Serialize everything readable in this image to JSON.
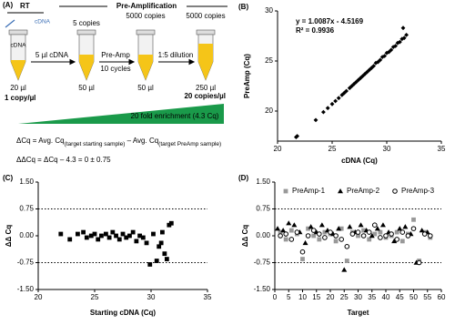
{
  "panel_a": {
    "label": "(A)",
    "rt": "RT",
    "preamp_header": "Pre-Amplification",
    "top_cdna": "cDNA",
    "tube_cdna": "cDNA",
    "copies": [
      "5 copies",
      "5000 copies",
      "5000 copies"
    ],
    "steps": [
      "5 µl cDNA",
      "Pre-Amp",
      "10 cycles",
      "1:5 dilution"
    ],
    "volumes": [
      "20 µl",
      "50 µl",
      "50 µl",
      "250 µl"
    ],
    "start_conc": "1 copy/µl",
    "end_conc": "20 copies/µl",
    "enrichment": "20 fold enrichment (4.3 Cq)",
    "eq1": {
      "lhs": "ΔCq = Avg. Cq",
      "sub1": "(target starting sample)",
      "mid": " – Avg. Cq",
      "sub2": "(target PreAmp sample)"
    },
    "eq2": "ΔΔCq = ΔCq – 4.3 = 0 ± 0.75"
  },
  "chart_data": [
    {
      "type": "scatter",
      "label": "(B)",
      "xlabel": "cDNA (Cq)",
      "ylabel": "PreAmp (Cq)",
      "xlim": [
        20,
        35
      ],
      "ylim": [
        17,
        30
      ],
      "xticks": [
        20,
        25,
        30,
        35
      ],
      "yticks": [
        20,
        25,
        30
      ],
      "annotations": [
        "y = 1.0087x - 4.5169",
        "R² = 0.9936"
      ],
      "series": [
        {
          "color": "#000000",
          "marker": "diamond",
          "x": [
            21.7,
            21.8,
            23.5,
            24.2,
            24.6,
            25.0,
            25.3,
            25.6,
            25.9,
            26.1,
            26.3,
            26.6,
            26.8,
            27.0,
            27.2,
            27.4,
            27.6,
            27.8,
            28.0,
            28.2,
            28.4,
            28.6,
            28.8,
            29.0,
            29.2,
            29.4,
            29.6,
            29.8,
            30.0,
            30.2,
            30.4,
            30.6,
            30.8,
            31.0,
            31.2,
            31.4,
            31.5,
            31.6,
            31.8
          ],
          "values": [
            17.4,
            17.5,
            19.1,
            19.9,
            20.3,
            20.7,
            21.0,
            21.3,
            21.6,
            21.8,
            22.0,
            22.3,
            22.5,
            22.7,
            22.9,
            23.1,
            23.3,
            23.5,
            23.7,
            23.9,
            24.1,
            24.3,
            24.5,
            24.8,
            24.9,
            25.1,
            25.4,
            25.5,
            25.8,
            25.9,
            26.1,
            26.4,
            26.5,
            26.8,
            26.9,
            27.2,
            28.3,
            27.3,
            27.6
          ]
        }
      ]
    },
    {
      "type": "scatter",
      "label": "(C)",
      "xlabel": "Starting cDNA (Cq)",
      "ylabel": "ΔΔ Cq",
      "xlim": [
        20,
        35
      ],
      "ylim": [
        -1.5,
        1.5
      ],
      "xticks": [
        20,
        25,
        30,
        35
      ],
      "yticks": [
        {
          "value": -1.5,
          "label": "-1.50"
        },
        {
          "value": -0.75,
          "label": "-0.75"
        },
        {
          "value": 0,
          "label": "0.00"
        },
        {
          "value": 0.75,
          "label": "0.75"
        },
        {
          "value": 1.5,
          "label": "1.50"
        }
      ],
      "reference_lines": [
        -0.75,
        0.75
      ],
      "series": [
        {
          "color": "#000000",
          "marker": "square",
          "x": [
            22.0,
            22.8,
            23.5,
            24.0,
            24.3,
            24.7,
            25.0,
            25.3,
            25.6,
            26.0,
            26.3,
            26.6,
            26.9,
            27.2,
            27.5,
            27.8,
            28.1,
            28.4,
            28.7,
            29.0,
            29.3,
            29.6,
            29.9,
            30.2,
            30.5,
            30.7,
            30.9,
            31.0,
            31.2,
            31.4,
            31.6,
            31.8
          ],
          "values": [
            0.05,
            -0.1,
            0.05,
            0.1,
            -0.05,
            0.0,
            0.05,
            -0.1,
            0.0,
            0.05,
            -0.05,
            0.1,
            0.0,
            -0.1,
            0.05,
            -0.05,
            0.0,
            0.1,
            -0.15,
            0.0,
            -0.05,
            -0.2,
            -0.8,
            0.05,
            -0.7,
            -0.3,
            -0.2,
            0.1,
            -0.5,
            -0.65,
            0.3,
            0.35
          ]
        }
      ]
    },
    {
      "type": "scatter",
      "label": "(D)",
      "xlabel": "Target",
      "ylabel": "ΔΔ Cq",
      "xlim": [
        0,
        60
      ],
      "ylim": [
        -1.5,
        1.5
      ],
      "xticks": [
        0,
        5,
        10,
        15,
        20,
        25,
        30,
        35,
        40,
        45,
        50,
        55,
        60
      ],
      "yticks": [
        {
          "value": -1.5,
          "label": "-1.50"
        },
        {
          "value": -0.75,
          "label": "-0.75"
        },
        {
          "value": 0,
          "label": "0.00"
        },
        {
          "value": 0.75,
          "label": "0.75"
        },
        {
          "value": 1.5,
          "label": "1.50"
        }
      ],
      "reference_lines": [
        -0.75,
        0.75
      ],
      "series": [
        {
          "name": "PreAmp-1",
          "color": "#999999",
          "marker": "square",
          "x": [
            2,
            4,
            6,
            8,
            10,
            12,
            14,
            16,
            18,
            20,
            22,
            24,
            26,
            28,
            30,
            32,
            34,
            36,
            38,
            40,
            42,
            44,
            46,
            48,
            50,
            52,
            54,
            56
          ],
          "values": [
            0.1,
            -0.1,
            0.15,
            0.05,
            -0.65,
            0.2,
            0.0,
            -0.1,
            0.1,
            0.05,
            -0.15,
            0.2,
            -0.7,
            0.1,
            0.0,
            0.15,
            -0.1,
            0.05,
            0.1,
            -0.05,
            0.0,
            0.1,
            -0.15,
            0.05,
            0.45,
            -0.7,
            0.1,
            -0.05
          ]
        },
        {
          "name": "PreAmp-2",
          "color": "#000000",
          "marker": "triangle",
          "x": [
            1,
            3,
            5,
            7,
            9,
            11,
            13,
            15,
            17,
            19,
            21,
            23,
            25,
            27,
            29,
            31,
            33,
            35,
            37,
            39,
            41,
            43,
            45,
            47,
            49,
            51,
            53,
            55
          ],
          "values": [
            0.2,
            0.15,
            0.35,
            0.3,
            0.1,
            -0.2,
            0.25,
            0.1,
            0.3,
            0.15,
            0.05,
            0.2,
            -0.95,
            0.25,
            0.1,
            0.3,
            0.15,
            0.0,
            0.2,
            0.3,
            0.1,
            -0.15,
            0.2,
            0.25,
            0.05,
            -0.75,
            0.15,
            0.1
          ]
        },
        {
          "name": "PreAmp-3",
          "color": "#000000",
          "marker": "circle-open",
          "x": [
            2,
            4,
            6,
            8,
            10,
            12,
            14,
            16,
            18,
            20,
            22,
            24,
            26,
            28,
            30,
            32,
            34,
            36,
            38,
            40,
            42,
            44,
            46,
            48,
            50,
            52,
            54,
            56
          ],
          "values": [
            0.0,
            0.05,
            -0.1,
            0.1,
            -0.45,
            0.0,
            0.15,
            0.05,
            -0.05,
            0.1,
            0.0,
            -0.1,
            -0.3,
            0.05,
            0.1,
            0.0,
            0.1,
            0.3,
            -0.05,
            0.0,
            0.05,
            -0.1,
            0.1,
            0.0,
            0.2,
            -0.75,
            0.05,
            0.0
          ]
        }
      ]
    }
  ]
}
